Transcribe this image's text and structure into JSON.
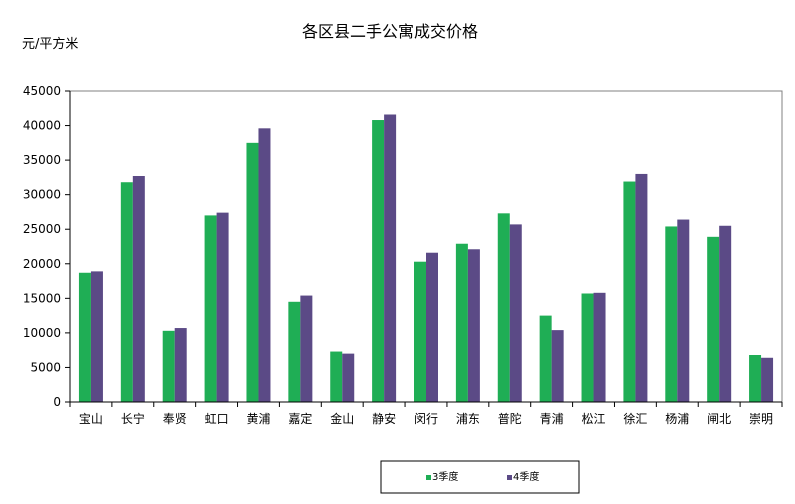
{
  "chart_data": {
    "type": "bar",
    "title": "各区县二手公寓成交价格",
    "ylabel": "元/平方米",
    "xlabel": "",
    "ylim": [
      0,
      45000
    ],
    "yticks": [
      0,
      5000,
      10000,
      15000,
      20000,
      25000,
      30000,
      35000,
      40000,
      45000
    ],
    "grid": false,
    "legend_position": "bottom-right",
    "categories": [
      "宝山",
      "长宁",
      "奉贤",
      "虹口",
      "黄浦",
      "嘉定",
      "金山",
      "静安",
      "闵行",
      "浦东",
      "普陀",
      "青浦",
      "松江",
      "徐汇",
      "杨浦",
      "闸北",
      "崇明"
    ],
    "series": [
      {
        "name": "3季度",
        "color": "#1fae55",
        "values": [
          18700,
          31800,
          10300,
          27000,
          37500,
          14500,
          7300,
          40800,
          20300,
          22900,
          27300,
          12500,
          15700,
          31900,
          25400,
          23900,
          6800
        ]
      },
      {
        "name": "4季度",
        "color": "#5b4a86",
        "values": [
          18900,
          32700,
          10700,
          27400,
          39600,
          15400,
          7000,
          41600,
          21600,
          22100,
          25700,
          10400,
          15800,
          33000,
          26400,
          25500,
          6400
        ]
      }
    ]
  }
}
